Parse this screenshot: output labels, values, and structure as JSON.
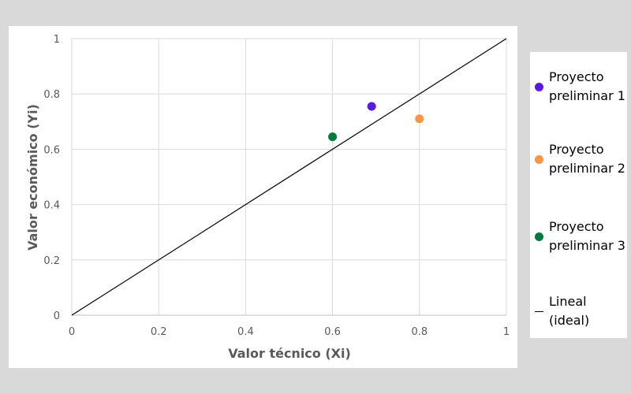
{
  "chart_data": {
    "type": "scatter",
    "xlabel": "Valor técnico (Xi)",
    "ylabel": "Valor económico (Yi)",
    "xlim": [
      0,
      1
    ],
    "ylim": [
      0,
      1
    ],
    "grid": true,
    "x_ticks": [
      "0",
      "0.2",
      "0.4",
      "0.6",
      "0.8",
      "1"
    ],
    "y_ticks": [
      "0",
      "0.2",
      "0.4",
      "0.6",
      "0.8",
      "1"
    ],
    "x_tick_values": [
      0,
      0.2,
      0.4,
      0.6,
      0.8,
      1
    ],
    "y_tick_values": [
      0,
      0.2,
      0.4,
      0.6,
      0.8,
      1
    ],
    "series": [
      {
        "name": "Proyecto preliminar 1",
        "x": [
          0.69
        ],
        "y": [
          0.755
        ],
        "color": "#5b1bdc"
      },
      {
        "name": "Proyecto preliminar 2",
        "x": [
          0.8
        ],
        "y": [
          0.71
        ],
        "color": "#f79646"
      },
      {
        "name": "Proyecto preliminar 3",
        "x": [
          0.6
        ],
        "y": [
          0.645
        ],
        "color": "#007a3d"
      }
    ],
    "reference_line": {
      "name": "Lineal (ideal)",
      "x": [
        0,
        1
      ],
      "y": [
        0,
        1
      ],
      "color": "#000000"
    },
    "legend_position": "right"
  },
  "legend": {
    "items": [
      {
        "label": "Proyecto\npreliminar 1",
        "color": "#5b1bdc",
        "kind": "marker"
      },
      {
        "label": "Proyecto\npreliminar 2",
        "color": "#f79646",
        "kind": "marker"
      },
      {
        "label": "Proyecto\npreliminar 3",
        "color": "#007a3d",
        "kind": "marker"
      },
      {
        "label": "Lineal\n(ideal)",
        "color": "#000000",
        "kind": "line"
      }
    ]
  }
}
